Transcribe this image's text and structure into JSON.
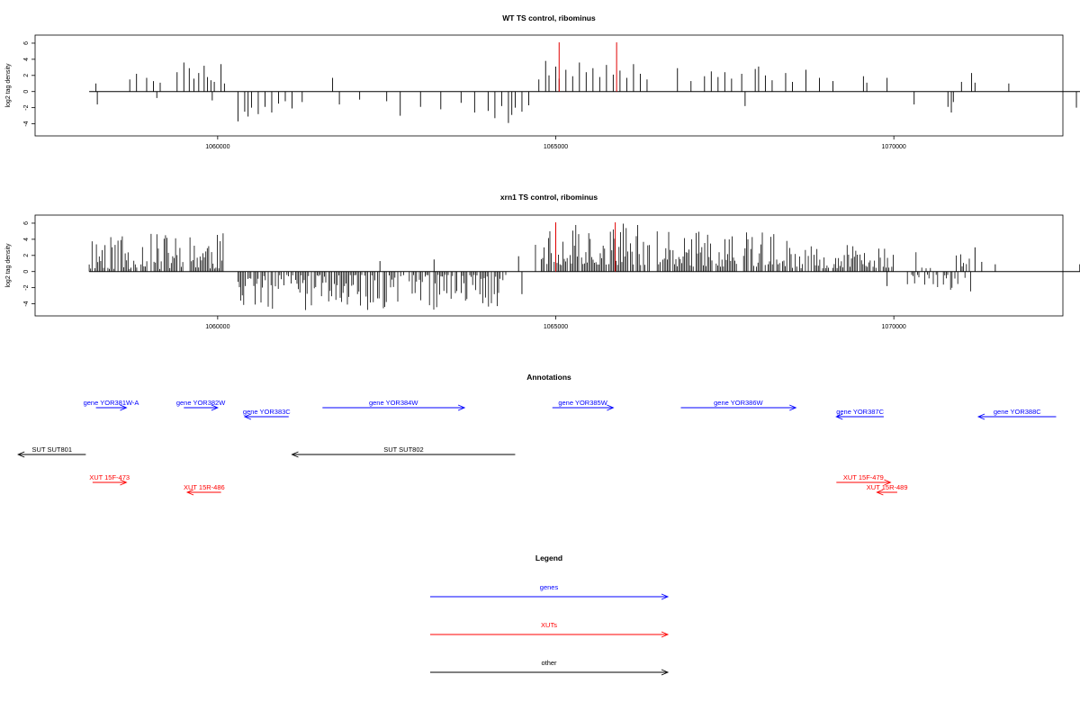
{
  "chart_data": [
    {
      "type": "bar",
      "title": "WT TS control, ribominus",
      "ylabel": "log2 tag density",
      "xlabel": "",
      "xlim": [
        1057300,
        1072500
      ],
      "ylim": [
        -5.5,
        7
      ],
      "x_ticks": [
        1060000,
        1065000,
        1070000
      ],
      "x_tick_labels": [
        "1060000",
        "1065000",
        "1070000"
      ],
      "y_ticks": [
        -4,
        -2,
        0,
        2,
        4,
        6
      ],
      "y_tick_labels": [
        "-4",
        "-2",
        "0",
        "2",
        "4",
        "6"
      ],
      "x_start": 1058100,
      "x_end": 1072800,
      "bars": [
        {
          "x": 1058200,
          "y": 1.0
        },
        {
          "x": 1058220,
          "y": -1.6
        },
        {
          "x": 1058700,
          "y": 1.5
        },
        {
          "x": 1058800,
          "y": 2.2
        },
        {
          "x": 1058950,
          "y": 1.7
        },
        {
          "x": 1059050,
          "y": 1.3
        },
        {
          "x": 1059100,
          "y": -0.8
        },
        {
          "x": 1059150,
          "y": 1.1
        },
        {
          "x": 1059400,
          "y": 2.4
        },
        {
          "x": 1059500,
          "y": 3.6
        },
        {
          "x": 1059580,
          "y": 2.9
        },
        {
          "x": 1059650,
          "y": 1.6
        },
        {
          "x": 1059720,
          "y": 2.3
        },
        {
          "x": 1059800,
          "y": 3.2
        },
        {
          "x": 1059850,
          "y": 1.8
        },
        {
          "x": 1059900,
          "y": 1.4
        },
        {
          "x": 1059950,
          "y": 1.2
        },
        {
          "x": 1060050,
          "y": 3.4
        },
        {
          "x": 1060100,
          "y": 1.0
        },
        {
          "x": 1059920,
          "y": -1.1
        },
        {
          "x": 1060300,
          "y": -3.7
        },
        {
          "x": 1060400,
          "y": -2.5
        },
        {
          "x": 1060450,
          "y": -3.1
        },
        {
          "x": 1060500,
          "y": -2.0
        },
        {
          "x": 1060600,
          "y": -2.8
        },
        {
          "x": 1060700,
          "y": -1.9
        },
        {
          "x": 1060800,
          "y": -2.6
        },
        {
          "x": 1060900,
          "y": -1.5
        },
        {
          "x": 1061000,
          "y": -1.2
        },
        {
          "x": 1061100,
          "y": -2.1
        },
        {
          "x": 1061250,
          "y": -1.3
        },
        {
          "x": 1061700,
          "y": 1.7
        },
        {
          "x": 1061800,
          "y": -1.6
        },
        {
          "x": 1062100,
          "y": -1.0
        },
        {
          "x": 1062500,
          "y": -1.2
        },
        {
          "x": 1062700,
          "y": -3.0
        },
        {
          "x": 1063000,
          "y": -1.9
        },
        {
          "x": 1063300,
          "y": -2.2
        },
        {
          "x": 1063600,
          "y": -1.4
        },
        {
          "x": 1063800,
          "y": -2.6
        },
        {
          "x": 1064000,
          "y": -2.4
        },
        {
          "x": 1064100,
          "y": -3.3
        },
        {
          "x": 1064200,
          "y": -1.8
        },
        {
          "x": 1064300,
          "y": -3.9
        },
        {
          "x": 1064350,
          "y": -2.9
        },
        {
          "x": 1064400,
          "y": -2.0
        },
        {
          "x": 1064500,
          "y": -2.5
        },
        {
          "x": 1064600,
          "y": -1.7
        },
        {
          "x": 1064750,
          "y": 1.5
        },
        {
          "x": 1064850,
          "y": 3.8
        },
        {
          "x": 1064900,
          "y": 2.0
        },
        {
          "x": 1065000,
          "y": 3.1
        },
        {
          "x": 1065050,
          "y": 1.6
        },
        {
          "x": 1065150,
          "y": 2.7
        },
        {
          "x": 1065250,
          "y": 1.9
        },
        {
          "x": 1065350,
          "y": 3.6
        },
        {
          "x": 1065450,
          "y": 2.4
        },
        {
          "x": 1065550,
          "y": 2.9
        },
        {
          "x": 1065650,
          "y": 1.8
        },
        {
          "x": 1065750,
          "y": 3.3
        },
        {
          "x": 1065850,
          "y": 2.1
        },
        {
          "x": 1065950,
          "y": 2.6
        },
        {
          "x": 1066050,
          "y": 1.7
        },
        {
          "x": 1066150,
          "y": 3.4
        },
        {
          "x": 1066250,
          "y": 2.2
        },
        {
          "x": 1066350,
          "y": 1.5
        },
        {
          "x": 1066800,
          "y": 2.9
        },
        {
          "x": 1067000,
          "y": 1.3
        },
        {
          "x": 1067200,
          "y": 1.9
        },
        {
          "x": 1067300,
          "y": 2.5
        },
        {
          "x": 1067400,
          "y": 1.8
        },
        {
          "x": 1067500,
          "y": 2.4
        },
        {
          "x": 1067600,
          "y": 1.6
        },
        {
          "x": 1067750,
          "y": 2.2
        },
        {
          "x": 1067800,
          "y": -1.8
        },
        {
          "x": 1067950,
          "y": 2.8
        },
        {
          "x": 1068000,
          "y": 3.1
        },
        {
          "x": 1068100,
          "y": 2.0
        },
        {
          "x": 1068200,
          "y": 1.4
        },
        {
          "x": 1068400,
          "y": 2.3
        },
        {
          "x": 1068500,
          "y": 1.2
        },
        {
          "x": 1068700,
          "y": 2.7
        },
        {
          "x": 1068900,
          "y": 1.7
        },
        {
          "x": 1069100,
          "y": 1.3
        },
        {
          "x": 1069550,
          "y": 1.9
        },
        {
          "x": 1069600,
          "y": 1.1
        },
        {
          "x": 1069900,
          "y": 1.7
        },
        {
          "x": 1070300,
          "y": -1.6
        },
        {
          "x": 1070800,
          "y": -1.9
        },
        {
          "x": 1070850,
          "y": -2.6
        },
        {
          "x": 1070880,
          "y": -1.3
        },
        {
          "x": 1071000,
          "y": 1.2
        },
        {
          "x": 1071150,
          "y": 2.3
        },
        {
          "x": 1071200,
          "y": 1.1
        },
        {
          "x": 1071700,
          "y": 1.0
        },
        {
          "x": 1072700,
          "y": -2.0
        }
      ],
      "highlight_x": [
        1065050,
        1065900
      ],
      "highlight_color": "#e00000"
    },
    {
      "type": "bar",
      "title": "xrn1 TS control, ribominus",
      "ylabel": "log2 tag density",
      "xlabel": "",
      "xlim": [
        1057300,
        1072500
      ],
      "ylim": [
        -5.5,
        7
      ],
      "x_ticks": [
        1060000,
        1065000,
        1070000
      ],
      "x_tick_labels": [
        "1060000",
        "1065000",
        "1070000"
      ],
      "y_ticks": [
        -4,
        -2,
        0,
        2,
        4,
        6
      ],
      "y_tick_labels": [
        "-4",
        "-2",
        "0",
        "2",
        "4",
        "6"
      ],
      "x_start": 1058100,
      "x_end": 1072800,
      "segments": [
        {
          "from": 1058100,
          "to": 1060100,
          "min": 0.3,
          "max": 4.8,
          "seed": 11
        },
        {
          "from": 1060300,
          "to": 1064300,
          "min": -4.8,
          "max": -0.4,
          "seed": 23
        },
        {
          "from": 1064700,
          "to": 1066400,
          "min": 0.8,
          "max": 6.0,
          "seed": 37
        },
        {
          "from": 1066500,
          "to": 1068500,
          "min": 0.6,
          "max": 5.0,
          "seed": 41
        },
        {
          "from": 1068500,
          "to": 1070000,
          "min": 0.4,
          "max": 3.5,
          "seed": 53
        },
        {
          "from": 1070200,
          "to": 1071200,
          "min": -2.5,
          "max": 2.5,
          "seed": 67
        }
      ],
      "bars": [
        {
          "x": 1062400,
          "y": 1.3
        },
        {
          "x": 1063200,
          "y": 1.5
        },
        {
          "x": 1064450,
          "y": 1.9
        },
        {
          "x": 1064500,
          "y": -2.8
        },
        {
          "x": 1069900,
          "y": -1.8
        },
        {
          "x": 1071200,
          "y": 3.0
        },
        {
          "x": 1071300,
          "y": 1.2
        },
        {
          "x": 1071500,
          "y": 0.9
        },
        {
          "x": 1072750,
          "y": 0.9
        },
        {
          "x": 1072760,
          "y": 0.4
        }
      ],
      "highlight_x": [
        1065000,
        1065880
      ],
      "highlight_color": "#e00000"
    }
  ],
  "annotations": {
    "title": "Annotations",
    "items": [
      {
        "label": "gene YOR381W-A",
        "type": "gene",
        "dir": "right",
        "start": 1058200,
        "end": 1058650,
        "row": 0
      },
      {
        "label": "gene YOR382W",
        "type": "gene",
        "dir": "right",
        "start": 1059500,
        "end": 1060000,
        "row": 0
      },
      {
        "label": "gene YOR383C",
        "type": "gene",
        "dir": "left",
        "start": 1060400,
        "end": 1061050,
        "row": 1
      },
      {
        "label": "gene YOR384W",
        "type": "gene",
        "dir": "right",
        "start": 1061550,
        "end": 1063650,
        "row": 0
      },
      {
        "label": "gene YOR385W",
        "type": "gene",
        "dir": "right",
        "start": 1064950,
        "end": 1065850,
        "row": 0
      },
      {
        "label": "gene YOR386W",
        "type": "gene",
        "dir": "right",
        "start": 1066850,
        "end": 1068550,
        "row": 0
      },
      {
        "label": "gene YOR387C",
        "type": "gene",
        "dir": "left",
        "start": 1069150,
        "end": 1069850,
        "row": 1
      },
      {
        "label": "gene YOR388C",
        "type": "gene",
        "dir": "left",
        "start": 1071250,
        "end": 1072400,
        "row": 1
      },
      {
        "label": "SUT SUT801",
        "type": "other",
        "dir": "left",
        "start": 1057050,
        "end": 1058050,
        "row": 2
      },
      {
        "label": "SUT SUT802",
        "type": "other",
        "dir": "left",
        "start": 1061100,
        "end": 1064400,
        "row": 2
      },
      {
        "label": "XUT 15F-473",
        "type": "xut",
        "dir": "right",
        "start": 1058150,
        "end": 1058650,
        "row": 3
      },
      {
        "label": "XUT 15R-486",
        "type": "xut",
        "dir": "left",
        "start": 1059550,
        "end": 1060050,
        "row": 4
      },
      {
        "label": "XUT 15F-479",
        "type": "xut",
        "dir": "right",
        "start": 1069150,
        "end": 1069950,
        "row": 3
      },
      {
        "label": "XUT 15R-489",
        "type": "xut",
        "dir": "left",
        "start": 1069750,
        "end": 1070050,
        "row": 4
      }
    ]
  },
  "legend": {
    "title": "Legend",
    "items": [
      {
        "label": "genes",
        "color": "#0000ff"
      },
      {
        "label": "XUTs",
        "color": "#ff0000"
      },
      {
        "label": "other",
        "color": "#000000"
      }
    ]
  }
}
